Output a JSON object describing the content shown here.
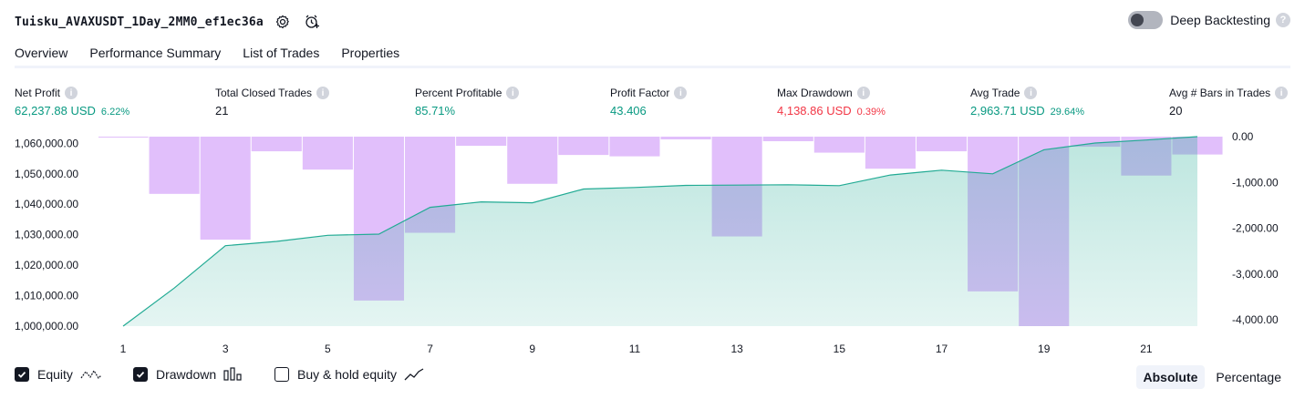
{
  "header": {
    "strategy_name": "Tuisku_AVAXUSDT_1Day_2MM0_ef1ec36a",
    "settings_icon": "gear-icon",
    "alert_icon": "alarm-clock-plus-icon",
    "deep_backtesting_label": "Deep Backtesting",
    "deep_backtesting_on": false,
    "help_label": "?"
  },
  "tabs": [
    {
      "label": "Overview",
      "active": true
    },
    {
      "label": "Performance Summary",
      "active": false
    },
    {
      "label": "List of Trades",
      "active": false
    },
    {
      "label": "Properties",
      "active": false
    }
  ],
  "metrics": [
    {
      "label": "Net Profit",
      "value": "62,237.88 USD",
      "pct": "6.22%",
      "color": "#089981"
    },
    {
      "label": "Total Closed Trades",
      "value": "21",
      "pct": "",
      "color": "#131722"
    },
    {
      "label": "Percent Profitable",
      "value": "85.71%",
      "pct": "",
      "color": "#089981"
    },
    {
      "label": "Profit Factor",
      "value": "43.406",
      "pct": "",
      "color": "#089981"
    },
    {
      "label": "Max Drawdown",
      "value": "4,138.86 USD",
      "pct": "0.39%",
      "color": "#f23645"
    },
    {
      "label": "Avg Trade",
      "value": "2,963.71 USD",
      "pct": "29.64%",
      "color": "#089981"
    },
    {
      "label": "Avg # Bars in Trades",
      "value": "20",
      "pct": "",
      "color": "#131722"
    }
  ],
  "chart_data": {
    "type": "line",
    "x": [
      1,
      2,
      3,
      4,
      5,
      6,
      7,
      8,
      9,
      10,
      11,
      12,
      13,
      14,
      15,
      16,
      17,
      18,
      19,
      20,
      21,
      22
    ],
    "x_tick_labels": [
      "1",
      "3",
      "5",
      "7",
      "9",
      "11",
      "13",
      "15",
      "17",
      "19",
      "21"
    ],
    "series": [
      {
        "name": "Equity",
        "axis": "left",
        "color": "#22ab94",
        "values": [
          1000000,
          1012500,
          1026400,
          1027800,
          1029800,
          1030200,
          1039000,
          1040800,
          1040500,
          1045000,
          1045500,
          1046200,
          1046300,
          1046400,
          1046100,
          1049600,
          1051200,
          1050000,
          1057900,
          1060100,
          1061100,
          1062200
        ]
      },
      {
        "name": "Drawdown",
        "axis": "right",
        "color": "#e1bffb",
        "type": "bar",
        "values": [
          -20,
          -1250,
          -2250,
          -320,
          -720,
          -3580,
          -2100,
          -200,
          -1030,
          -400,
          -430,
          -60,
          -2180,
          -100,
          -350,
          -700,
          -320,
          -3380,
          -4139,
          -220,
          -850,
          -390
        ]
      }
    ],
    "left_axis": {
      "ticks": [
        "1,000,000.00",
        "1,010,000.00",
        "1,020,000.00",
        "1,030,000.00",
        "1,040,000.00",
        "1,050,000.00",
        "1,060,000.00"
      ],
      "ylim": [
        1000000,
        1062200
      ]
    },
    "right_axis": {
      "ticks": [
        "0.00",
        "-1,000.00",
        "-2,000.00",
        "-3,000.00",
        "-4,000.00"
      ],
      "ylim": [
        -4139,
        0
      ]
    },
    "grid": false,
    "legend": "bottom-left"
  },
  "legend": [
    {
      "label": "Equity",
      "checked": true,
      "icon": "equity-line-icon"
    },
    {
      "label": "Drawdown",
      "checked": true,
      "icon": "bars-icon"
    },
    {
      "label": "Buy & hold equity",
      "checked": false,
      "icon": "trend-line-icon"
    }
  ],
  "view_mode": {
    "options": [
      {
        "label": "Absolute",
        "active": true
      },
      {
        "label": "Percentage",
        "active": false
      }
    ]
  }
}
